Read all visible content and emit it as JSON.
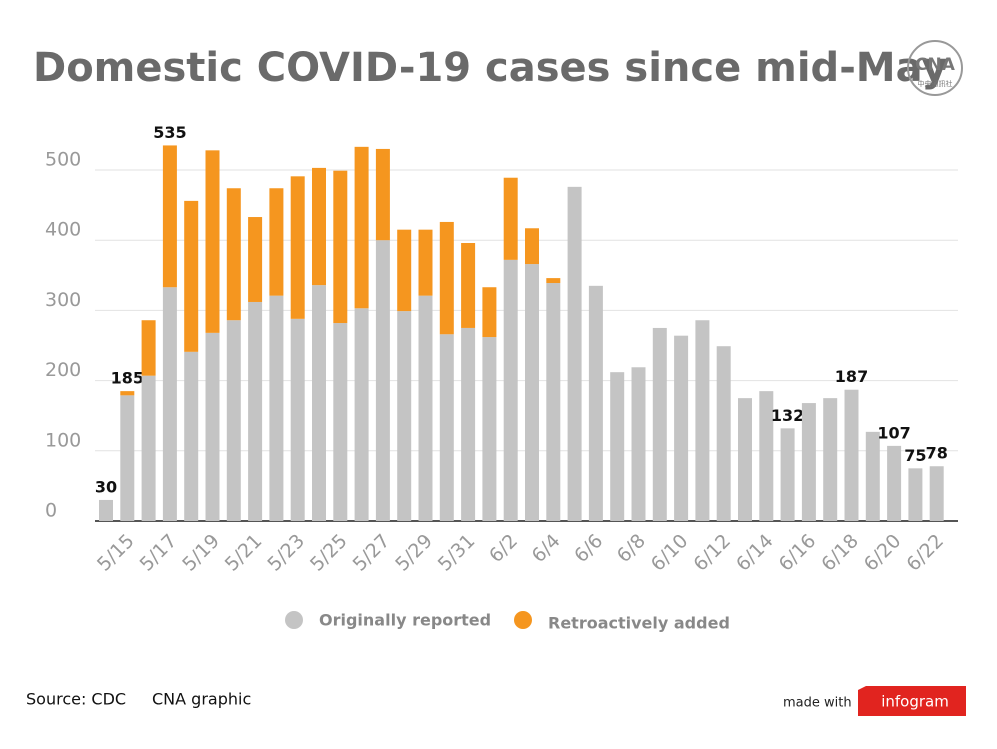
{
  "chart_data": {
    "type": "stacked_bar",
    "title": "Domestic COVID-19 cases since mid-May",
    "categories": [
      null,
      "5/15",
      null,
      "5/17",
      null,
      "5/19",
      null,
      "5/21",
      null,
      "5/23",
      null,
      "5/25",
      null,
      "5/27",
      null,
      "5/29",
      null,
      "5/31",
      null,
      "6/2",
      null,
      "6/4",
      null,
      "6/6",
      null,
      "6/8",
      null,
      "6/10",
      null,
      "6/12",
      null,
      "6/14",
      null,
      "6/16",
      null,
      "6/18",
      null,
      "6/20",
      null,
      "6/22"
    ],
    "series": [
      {
        "name": "Originally reported",
        "color": "#c4c4c4",
        "values": [
          30,
          179,
          207,
          333,
          241,
          268,
          286,
          312,
          321,
          288,
          336,
          282,
          303,
          400,
          299,
          321,
          266,
          275,
          262,
          372,
          366,
          339,
          476,
          335,
          212,
          219,
          275,
          264,
          286,
          249,
          175,
          185,
          132,
          168,
          175,
          187,
          127,
          107,
          75,
          78
        ]
      },
      {
        "name": "Retroactively added",
        "color": "#f5961f",
        "values": [
          0,
          6,
          79,
          202,
          215,
          260,
          188,
          121,
          153,
          203,
          167,
          217,
          230,
          130,
          116,
          94,
          160,
          121,
          71,
          117,
          51,
          7,
          0,
          0,
          0,
          0,
          0,
          0,
          0,
          0,
          0,
          0,
          0,
          0,
          0,
          0,
          0,
          0,
          0,
          0
        ]
      }
    ],
    "total_labels": [
      30,
      185,
      null,
      535,
      null,
      null,
      null,
      null,
      null,
      null,
      null,
      null,
      null,
      null,
      null,
      null,
      null,
      null,
      null,
      null,
      null,
      null,
      null,
      null,
      null,
      null,
      null,
      null,
      null,
      null,
      null,
      null,
      132,
      null,
      null,
      187,
      null,
      107,
      75,
      78
    ],
    "ylim": [
      0,
      550
    ],
    "yticks": [
      0,
      100,
      200,
      300,
      400,
      500
    ],
    "grid": true,
    "source": "Source: CDC",
    "credit": "CNA graphic",
    "made_with": "made with",
    "brand": "infogram",
    "logo": "CNA",
    "logo_sub": "中央通訊社"
  }
}
